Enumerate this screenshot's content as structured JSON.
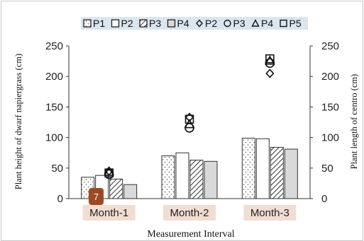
{
  "chart_data": {
    "type": "bar",
    "categories": [
      "Month-1",
      "Month-2",
      "Month-3"
    ],
    "xlabel": "Measurement Interval",
    "ylabel_left": "Plant height of dwarf napiergrass (cm)",
    "ylabel_right": "Plant length of centro (cm)",
    "ylim_left": [
      0,
      250
    ],
    "ylim_right": [
      0,
      250
    ],
    "yticks": [
      0,
      50,
      100,
      150,
      200,
      250
    ],
    "legend_position": "top",
    "bar_series": [
      {
        "name": "P1",
        "pattern": "dotted",
        "values": [
          35,
          70,
          99
        ]
      },
      {
        "name": "P2",
        "pattern": "white",
        "values": [
          38,
          75,
          98
        ]
      },
      {
        "name": "P3",
        "pattern": "hatched",
        "values": [
          32,
          63,
          84
        ]
      },
      {
        "name": "P4",
        "pattern": "gray",
        "values": [
          23,
          61,
          81
        ]
      }
    ],
    "marker_series": [
      {
        "name": "P2",
        "marker": "diamond",
        "values": [
          45,
          133,
          205
        ]
      },
      {
        "name": "P3",
        "marker": "circle",
        "values": [
          40,
          116,
          222
        ]
      },
      {
        "name": "P4",
        "marker": "triangle",
        "values": [
          44,
          122,
          226
        ]
      },
      {
        "name": "P5",
        "marker": "square",
        "values": [
          42,
          130,
          229
        ]
      }
    ],
    "annotation": "7"
  },
  "colors": {
    "bar_outline": "#333333",
    "gray_fill": "#d9d9d9",
    "legend_bg": "#dbe5f0",
    "category_bg": "#f2ddd3",
    "badge": "#9c4a22"
  }
}
